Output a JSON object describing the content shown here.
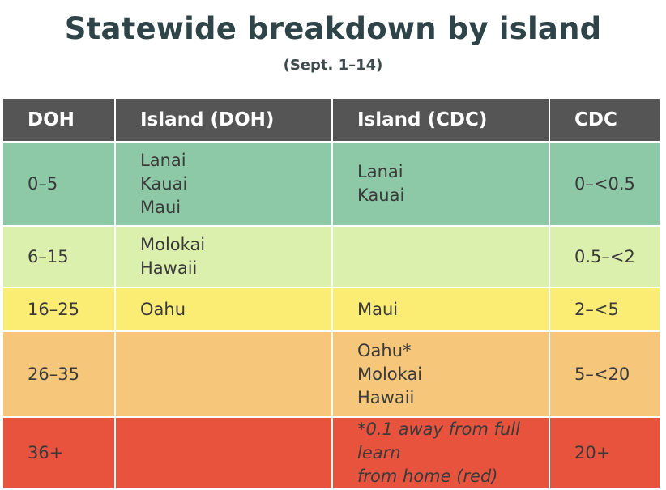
{
  "header": {
    "title": "Statewide breakdown by island",
    "subtitle": "(Sept. 1–14)"
  },
  "table": {
    "columns": [
      "DOH",
      "Island (DOH)",
      "Island (CDC)",
      "CDC"
    ],
    "rows": [
      {
        "doh": "0–5",
        "island_doh": [
          "Lanai",
          "Kauai",
          "Maui"
        ],
        "island_cdc": [
          "Lanai",
          "Kauai"
        ],
        "cdc": "0–<0.5",
        "color": "#8ec9a7"
      },
      {
        "doh": "6–15",
        "island_doh": [
          "Molokai",
          "Hawaii"
        ],
        "island_cdc": [],
        "cdc": "0.5–<2",
        "color": "#dcf0ad"
      },
      {
        "doh": "16–25",
        "island_doh": [
          "Oahu"
        ],
        "island_cdc": [
          "Maui"
        ],
        "cdc": "2–<5",
        "color": "#fbec74"
      },
      {
        "doh": "26–35",
        "island_doh": [],
        "island_cdc": [
          "Oahu*",
          "Molokai",
          "Hawaii"
        ],
        "cdc": "5–<20",
        "color": "#f6c77a"
      },
      {
        "doh": "36+",
        "island_doh": [],
        "note_lines": [
          "*0.1 away from full learn",
          "from home (red)"
        ],
        "cdc": "20+",
        "color": "#e8533e"
      }
    ]
  }
}
